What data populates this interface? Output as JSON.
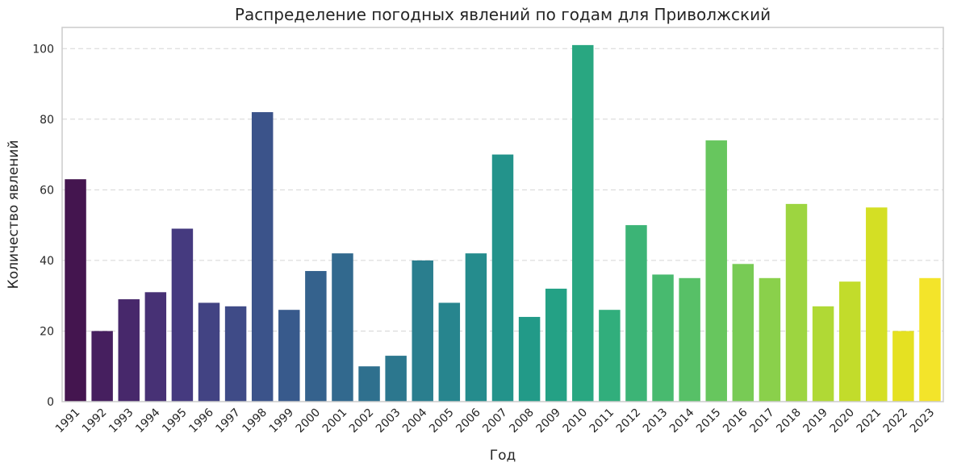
{
  "chart_data": {
    "type": "bar",
    "title": "Распределение погодных явлений по годам для Приволжский",
    "xlabel": "Год",
    "ylabel": "Количество явлений",
    "ylim": [
      0,
      106
    ],
    "yticks": [
      0,
      20,
      40,
      60,
      80,
      100
    ],
    "grid": "horizontal-dashed",
    "palette": "viridis",
    "categories": [
      "1991",
      "1992",
      "1993",
      "1994",
      "1995",
      "1996",
      "1997",
      "1998",
      "1999",
      "2000",
      "2001",
      "2002",
      "2003",
      "2004",
      "2005",
      "2006",
      "2007",
      "2008",
      "2009",
      "2010",
      "2011",
      "2012",
      "2013",
      "2014",
      "2015",
      "2016",
      "2017",
      "2018",
      "2019",
      "2020",
      "2021",
      "2022",
      "2023"
    ],
    "values": [
      63,
      20,
      29,
      31,
      49,
      28,
      27,
      82,
      26,
      37,
      42,
      10,
      13,
      40,
      28,
      42,
      70,
      24,
      32,
      101,
      26,
      50,
      36,
      35,
      74,
      39,
      35,
      56,
      27,
      34,
      55,
      20,
      35
    ],
    "colors": [
      "#44154f",
      "#461f5f",
      "#47286b",
      "#473175",
      "#453a7f",
      "#424383",
      "#3f4b87",
      "#3b538a",
      "#385a8c",
      "#35628d",
      "#32698e",
      "#2f708e",
      "#2c778e",
      "#2a7e8e",
      "#27858e",
      "#258c8d",
      "#23938b",
      "#229a88",
      "#24a185",
      "#29a781",
      "#31ae7c",
      "#3cb476",
      "#48ba6f",
      "#57c067",
      "#67c65e",
      "#78cb55",
      "#8ad04b",
      "#9dd540",
      "#b0d935",
      "#c2dc2b",
      "#d4df24",
      "#e5e122",
      "#f3e42a"
    ]
  }
}
